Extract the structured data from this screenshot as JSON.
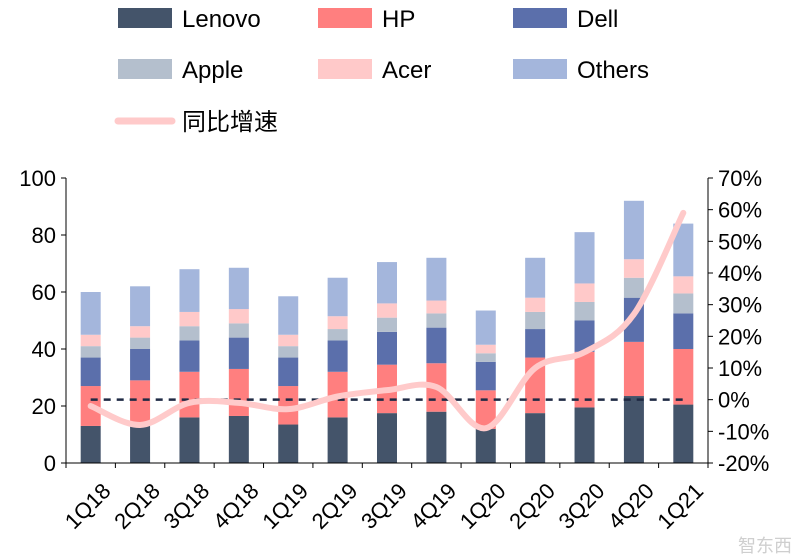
{
  "chart_data": {
    "type": "bar",
    "stacked": true,
    "categories": [
      "1Q18",
      "2Q18",
      "3Q18",
      "4Q18",
      "1Q19",
      "2Q19",
      "3Q19",
      "4Q19",
      "1Q20",
      "2Q20",
      "3Q20",
      "4Q20",
      "1Q21"
    ],
    "series": [
      {
        "name": "Lenovo",
        "color": "#44546a",
        "values": [
          13,
          13,
          16,
          16.5,
          13.5,
          16,
          17.5,
          18,
          12,
          17.5,
          19.5,
          23.5,
          20.5
        ]
      },
      {
        "name": "HP",
        "color": "#ff7f7f",
        "values": [
          14,
          16,
          16,
          16.5,
          13.5,
          16,
          17,
          17,
          13.5,
          19.5,
          19.5,
          19,
          19.5
        ]
      },
      {
        "name": "Dell",
        "color": "#5b6fab",
        "values": [
          10,
          11,
          11,
          11,
          10,
          11,
          11.5,
          12.5,
          10,
          10,
          11,
          15.5,
          12.5
        ]
      },
      {
        "name": "Apple",
        "color": "#b4bfcd",
        "values": [
          4,
          4,
          5,
          5,
          4,
          4,
          5,
          5,
          3,
          6,
          6.5,
          7,
          7
        ]
      },
      {
        "name": "Acer",
        "color": "#ffc9c9",
        "values": [
          4,
          4,
          5,
          5,
          4,
          4.5,
          5,
          4.5,
          3,
          5,
          6.5,
          6.5,
          6
        ]
      },
      {
        "name": "Others",
        "color": "#a4b6dc",
        "values": [
          15,
          14,
          15,
          14.5,
          13.5,
          13.5,
          14.5,
          15,
          12,
          14,
          18,
          20.5,
          18.5
        ]
      }
    ],
    "line_series": {
      "name": "同比增速",
      "color": "#ffcaca",
      "axis": "right",
      "values": [
        -2,
        -8,
        -1,
        -1,
        -3,
        1,
        3,
        4,
        -9,
        10,
        15,
        27,
        59
      ]
    },
    "reference_line": {
      "axis": "right",
      "value": 0,
      "color": "#1f2a44",
      "style": "dashed"
    },
    "y_left": {
      "min": 0,
      "max": 100,
      "ticks": [
        0,
        20,
        40,
        60,
        80,
        100
      ]
    },
    "y_right": {
      "min": -20,
      "max": 70,
      "ticks": [
        "-20%",
        "-10%",
        "0%",
        "10%",
        "20%",
        "30%",
        "40%",
        "50%",
        "60%",
        "70%"
      ]
    },
    "legend": [
      {
        "name": "Lenovo",
        "kind": "bar",
        "color": "#44546a"
      },
      {
        "name": "HP",
        "kind": "bar",
        "color": "#ff7f7f"
      },
      {
        "name": "Dell",
        "kind": "bar",
        "color": "#5b6fab"
      },
      {
        "name": "Apple",
        "kind": "bar",
        "color": "#b4bfcd"
      },
      {
        "name": "Acer",
        "kind": "bar",
        "color": "#ffc9c9"
      },
      {
        "name": "Others",
        "kind": "bar",
        "color": "#a4b6dc"
      },
      {
        "name": "同比增速",
        "kind": "line",
        "color": "#ffcaca"
      }
    ],
    "legend_position": "top",
    "watermark": "智东西"
  }
}
